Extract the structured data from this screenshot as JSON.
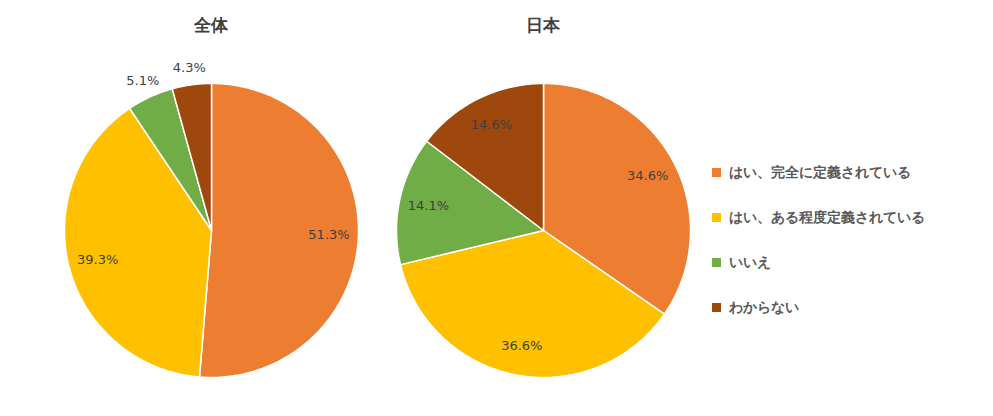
{
  "chart_data": [
    {
      "type": "pie",
      "title": "全体",
      "categories": [
        "はい、完全に定義されている",
        "はい、ある程度定義されている",
        "いいえ",
        "わからない"
      ],
      "values": [
        51.3,
        39.3,
        5.1,
        4.3
      ],
      "value_labels": [
        "51.3%",
        "39.3%",
        "5.1%",
        "4.3%"
      ],
      "colors": [
        "#ed7d31",
        "#ffc000",
        "#70ad47",
        "#9e480e"
      ],
      "data_labels": true,
      "legend": "right"
    },
    {
      "type": "pie",
      "title": "日本",
      "categories": [
        "はい、完全に定義されている",
        "はい、ある程度定義されている",
        "いいえ",
        "わからない"
      ],
      "values": [
        34.6,
        36.6,
        14.1,
        14.6
      ],
      "value_labels": [
        "34.6%",
        "36.6%",
        "14.1%",
        "14.6%"
      ],
      "colors": [
        "#ed7d31",
        "#ffc000",
        "#70ad47",
        "#9e480e"
      ],
      "data_labels": true,
      "legend": "right"
    }
  ]
}
